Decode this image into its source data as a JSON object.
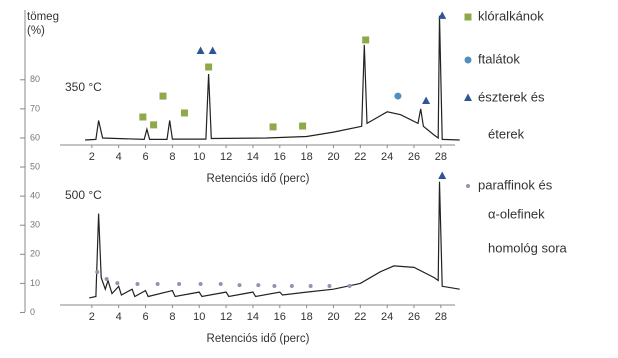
{
  "chart_data": {
    "type": "chromatogram",
    "ylabel": [
      "tömeg",
      "(%)"
    ],
    "ylim": [
      -5,
      104
    ],
    "yticks": [
      0,
      10,
      20,
      30,
      40,
      50,
      60,
      70,
      80
    ],
    "xlim": [
      0,
      29.5
    ],
    "xticks": [
      2,
      4,
      6,
      8,
      10,
      12,
      14,
      16,
      18,
      20,
      22,
      24,
      26,
      28
    ],
    "xlabel": "Retenciós idő (perc)",
    "line_color": "#222222",
    "legend": [
      {
        "name": [
          "klóralkánok"
        ],
        "color": "#8fa84a",
        "marker": "square"
      },
      {
        "name": [
          "ftalátok"
        ],
        "color": "#4f8fc0",
        "marker": "circle"
      },
      {
        "name": [
          "észterek és",
          "éterek"
        ],
        "color": "#2e5597",
        "marker": "triangle"
      },
      {
        "name": [
          "paraffinok és",
          "α-olefinek",
          "homológ sora"
        ],
        "color": "#9b8fb0",
        "marker": "dot"
      }
    ],
    "panels": [
      {
        "label": "350 °C",
        "line": {
          "x": [
            1.5,
            2.3,
            2.5,
            2.8,
            5.9,
            6.1,
            6.3,
            7.6,
            7.8,
            8.0,
            10.5,
            10.7,
            10.9,
            15,
            18,
            20,
            22.1,
            22.3,
            22.5,
            24,
            25,
            26.3,
            26.5,
            26.7,
            27.5,
            27.8,
            27.9,
            28.1,
            29.4
          ],
          "values": [
            59.3,
            59.5,
            66,
            60,
            59.5,
            63,
            59.5,
            59.5,
            66,
            59.6,
            59.6,
            82,
            59.8,
            60,
            60.5,
            62,
            64,
            92,
            65,
            69,
            68,
            65,
            70,
            64,
            61,
            60,
            102,
            59.5,
            59.3
          ]
        },
        "marks": [
          {
            "x": [
              5.8,
              6.6,
              7.3,
              8.9,
              10.7,
              15.5,
              17.7,
              22.4
            ],
            "values": [
              67.2,
              64.5,
              74.4,
              68.6,
              84.4,
              63.8,
              64.1,
              93.7
            ]
          },
          {
            "x": [
              24.8
            ],
            "values": [
              74.4
            ]
          },
          {
            "x": [
              10.1,
              11.0,
              26.9,
              28.1
            ],
            "values": [
              89.9,
              89.9,
              72.7,
              102
            ]
          },
          {
            "x": [],
            "values": []
          }
        ]
      },
      {
        "label": "500 °C",
        "line": {
          "x": [
            1.8,
            2.3,
            2.5,
            2.7,
            3.0,
            3.2,
            3.5,
            4,
            4.2,
            5,
            5.2,
            6,
            6.2,
            8,
            8.2,
            10,
            10.2,
            12,
            12.2,
            14,
            14.2,
            16,
            16.2,
            18,
            20,
            22,
            23.5,
            24.5,
            26,
            27.5,
            27.8,
            27.9,
            28.1,
            29.4
          ],
          "values": [
            5,
            5.5,
            34,
            12,
            8,
            11,
            6.5,
            9,
            6,
            8,
            5.5,
            7.5,
            5.5,
            7.5,
            5.5,
            7,
            5.5,
            7,
            5.5,
            7,
            5.5,
            7,
            6,
            7,
            8,
            10,
            14,
            16,
            15.5,
            12,
            11,
            45,
            9,
            8
          ]
        },
        "marks": [
          {
            "x": [],
            "values": []
          },
          {
            "x": [],
            "values": []
          },
          {
            "x": [
              28.1
            ],
            "values": [
              46.9
            ]
          },
          {
            "x": [
              2.4,
              3.1,
              3.9,
              5.4,
              6.9,
              8.5,
              10.1,
              11.6,
              13.0,
              14.4,
              15.6,
              16.9,
              18.3,
              19.7,
              21.2
            ],
            "values": [
              13.9,
              11.5,
              10.1,
              9.8,
              9.8,
              9.8,
              9.8,
              9.8,
              9.4,
              9.4,
              9.1,
              9.1,
              9.1,
              9.1,
              9.1
            ]
          }
        ]
      }
    ]
  }
}
